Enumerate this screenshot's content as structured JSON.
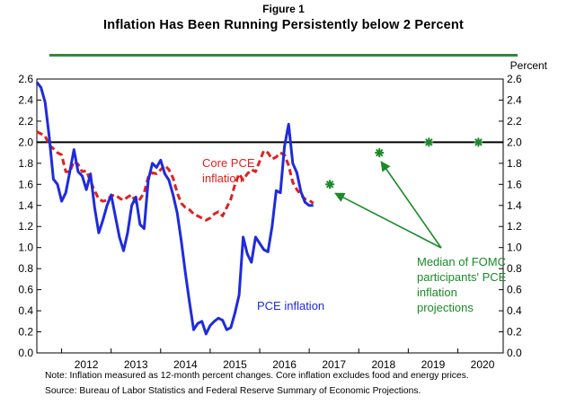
{
  "figure_label": "Figure 1",
  "note": "Note: Inflation measured as 12-month percent changes. Core inflation excludes food and energy prices.",
  "source": "Source: Bureau of Labor Statistics and Federal Reserve Summary of Economic Projections.",
  "colors": {
    "pce": "#1f2bdc",
    "core": "#e0201e",
    "projection": "#1a8a28",
    "title_rule": "#2e8b3a",
    "reference": "#000000"
  },
  "chart_data": {
    "type": "line",
    "title": "Inflation Has Been Running Persistently below 2 Percent",
    "ylabel": "Percent",
    "ylim": [
      0.0,
      2.6
    ],
    "y_ticks": [
      "0.0",
      "0.2",
      "0.4",
      "0.6",
      "0.8",
      "1.0",
      "1.2",
      "1.4",
      "1.6",
      "1.8",
      "2.0",
      "2.2",
      "2.4",
      "2.6"
    ],
    "x_ticks": [
      "2012",
      "2013",
      "2014",
      "2015",
      "2016",
      "2017",
      "2018",
      "2019",
      "2020"
    ],
    "xlim": [
      "2011-07",
      "2020-12"
    ],
    "reference_line": 2.0,
    "grid": false,
    "series": [
      {
        "name": "PCE inflation",
        "color": "#1f2bdc",
        "style": "solid",
        "x": [
          "2011-07",
          "2011-08",
          "2011-09",
          "2011-10",
          "2011-11",
          "2011-12",
          "2012-01",
          "2012-02",
          "2012-03",
          "2012-04",
          "2012-05",
          "2012-06",
          "2012-07",
          "2012-08",
          "2012-09",
          "2012-10",
          "2012-11",
          "2012-12",
          "2013-01",
          "2013-02",
          "2013-03",
          "2013-04",
          "2013-05",
          "2013-06",
          "2013-07",
          "2013-08",
          "2013-09",
          "2013-10",
          "2013-11",
          "2013-12",
          "2014-01",
          "2014-02",
          "2014-03",
          "2014-04",
          "2014-05",
          "2014-06",
          "2014-07",
          "2014-08",
          "2014-09",
          "2014-10",
          "2014-11",
          "2014-12",
          "2015-01",
          "2015-02",
          "2015-03",
          "2015-04",
          "2015-05",
          "2015-06",
          "2015-07",
          "2015-08",
          "2015-09",
          "2015-10",
          "2015-11",
          "2015-12",
          "2016-01",
          "2016-02",
          "2016-03",
          "2016-04",
          "2016-05",
          "2016-06",
          "2016-07",
          "2016-08",
          "2016-09",
          "2016-10",
          "2016-11",
          "2016-12",
          "2017-01",
          "2017-02",
          "2017-03",
          "2017-04",
          "2017-05"
        ],
        "values": [
          2.57,
          2.52,
          2.38,
          2.05,
          1.65,
          1.6,
          1.44,
          1.52,
          1.72,
          1.93,
          1.72,
          1.68,
          1.55,
          1.7,
          1.38,
          1.14,
          1.26,
          1.4,
          1.5,
          1.3,
          1.1,
          0.97,
          1.14,
          1.4,
          1.48,
          1.22,
          1.18,
          1.64,
          1.8,
          1.76,
          1.83,
          1.7,
          1.64,
          1.5,
          1.33,
          1.06,
          0.76,
          0.48,
          0.22,
          0.28,
          0.3,
          0.18,
          0.26,
          0.3,
          0.33,
          0.31,
          0.22,
          0.24,
          0.38,
          0.55,
          1.1,
          0.94,
          0.86,
          1.1,
          1.04,
          0.98,
          0.96,
          1.2,
          1.54,
          1.52,
          1.96,
          2.17,
          1.8,
          1.71,
          1.53,
          1.43,
          1.4,
          1.4,
          null,
          null,
          null
        ]
      },
      {
        "name": "Core PCE inflation",
        "color": "#e0201e",
        "style": "dashed",
        "x": [
          "2011-07",
          "2011-08",
          "2011-09",
          "2011-10",
          "2011-11",
          "2011-12",
          "2012-01",
          "2012-02",
          "2012-03",
          "2012-04",
          "2012-05",
          "2012-06",
          "2012-07",
          "2012-08",
          "2012-09",
          "2012-10",
          "2012-11",
          "2012-12",
          "2013-01",
          "2013-02",
          "2013-03",
          "2013-04",
          "2013-05",
          "2013-06",
          "2013-07",
          "2013-08",
          "2013-09",
          "2013-10",
          "2013-11",
          "2013-12",
          "2014-01",
          "2014-02",
          "2014-03",
          "2014-04",
          "2014-05",
          "2014-06",
          "2014-07",
          "2014-08",
          "2014-09",
          "2014-10",
          "2014-11",
          "2014-12",
          "2015-01",
          "2015-02",
          "2015-03",
          "2015-04",
          "2015-05",
          "2015-06",
          "2015-07",
          "2015-08",
          "2015-09",
          "2015-10",
          "2015-11",
          "2015-12",
          "2016-01",
          "2016-02",
          "2016-03",
          "2016-04",
          "2016-05",
          "2016-06",
          "2016-07",
          "2016-08",
          "2016-09",
          "2016-10",
          "2016-11",
          "2016-12",
          "2017-01",
          "2017-02",
          "2017-03",
          "2017-04",
          "2017-05"
        ],
        "values": [
          2.1,
          2.08,
          2.06,
          1.97,
          1.94,
          1.9,
          1.88,
          1.72,
          1.72,
          1.82,
          1.79,
          1.72,
          1.73,
          1.63,
          1.54,
          1.46,
          1.44,
          1.45,
          1.49,
          1.5,
          1.47,
          1.45,
          1.48,
          1.5,
          1.43,
          1.46,
          1.52,
          1.67,
          1.71,
          1.7,
          1.74,
          1.78,
          1.74,
          1.66,
          1.52,
          1.42,
          1.38,
          1.36,
          1.32,
          1.3,
          1.28,
          1.26,
          1.28,
          1.32,
          1.34,
          1.3,
          1.38,
          1.46,
          1.6,
          1.7,
          1.64,
          1.7,
          1.74,
          1.72,
          1.82,
          1.92,
          1.9,
          1.84,
          1.86,
          1.9,
          1.88,
          1.78,
          1.62,
          1.55,
          1.5,
          1.46,
          1.45,
          1.42,
          null,
          null,
          null
        ]
      },
      {
        "name": "Median of FOMC participants' PCE inflation projections",
        "color": "#1a8a28",
        "style": "markers",
        "x": [
          "2017-06",
          "2018-06",
          "2019-06",
          "2020-06"
        ],
        "values": [
          1.6,
          1.9,
          2.0,
          2.0
        ]
      }
    ],
    "annotations": [
      {
        "text": "Core PCE inflation",
        "lines": [
          "Core PCE",
          "inflation"
        ],
        "color": "#e0201e"
      },
      {
        "text": "PCE inflation",
        "lines": [
          "PCE inflation"
        ],
        "color": "#1f2bdc"
      },
      {
        "text": "Median of FOMC participants' PCE inflation projections",
        "lines": [
          "Median of FOMC",
          "participants' PCE",
          "inflation",
          "projections"
        ],
        "color": "#1a8a28"
      }
    ]
  }
}
